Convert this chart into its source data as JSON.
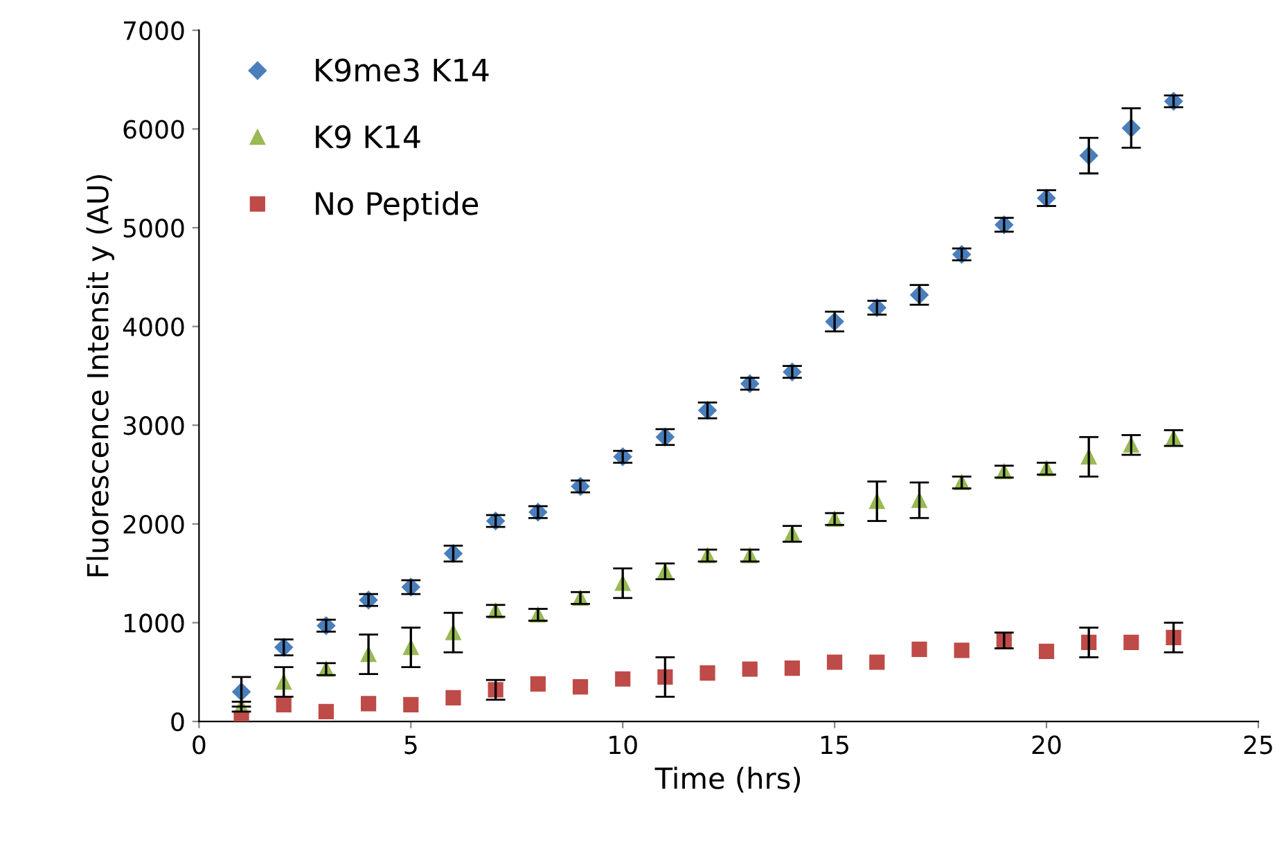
{
  "chart_data": {
    "type": "scatter",
    "xlabel": "Time (hrs)",
    "ylabel": "Fluorescence Intensit y (AU)",
    "x": [
      1,
      2,
      3,
      4,
      5,
      6,
      7,
      8,
      9,
      10,
      11,
      12,
      13,
      14,
      15,
      16,
      17,
      18,
      19,
      20,
      21,
      22,
      23
    ],
    "series": [
      {
        "name": "K9me3 K14",
        "color": "#4a7ebb",
        "marker": "diamond",
        "values": [
          300,
          750,
          970,
          1230,
          1360,
          1700,
          2030,
          2120,
          2380,
          2680,
          2880,
          3150,
          3420,
          3540,
          4050,
          4190,
          4320,
          4730,
          5030,
          5300,
          5730,
          6010,
          6280
        ],
        "errors": [
          150,
          80,
          60,
          60,
          70,
          80,
          60,
          60,
          60,
          60,
          80,
          80,
          60,
          60,
          100,
          70,
          100,
          60,
          70,
          80,
          180,
          200,
          60
        ]
      },
      {
        "name": "K9 K14",
        "color": "#98b954",
        "marker": "triangle",
        "values": [
          150,
          400,
          530,
          680,
          750,
          900,
          1120,
          1080,
          1250,
          1400,
          1520,
          1680,
          1680,
          1900,
          2050,
          2230,
          2240,
          2420,
          2530,
          2560,
          2680,
          2800,
          2870
        ],
        "errors": [
          50,
          150,
          60,
          200,
          200,
          200,
          60,
          60,
          60,
          150,
          80,
          60,
          60,
          80,
          60,
          200,
          180,
          60,
          60,
          60,
          200,
          100,
          80
        ]
      },
      {
        "name": "No Peptide",
        "color": "#be4b48",
        "marker": "square",
        "values": [
          30,
          170,
          100,
          180,
          170,
          240,
          320,
          380,
          350,
          430,
          450,
          490,
          530,
          540,
          600,
          600,
          730,
          720,
          820,
          710,
          800,
          800,
          850
        ],
        "errors": [
          null,
          null,
          null,
          null,
          null,
          null,
          100,
          null,
          null,
          null,
          200,
          null,
          null,
          null,
          null,
          null,
          null,
          null,
          80,
          null,
          150,
          null,
          150
        ]
      }
    ],
    "xlim": [
      0,
      25
    ],
    "xticks": [
      0,
      5,
      10,
      15,
      20,
      25
    ],
    "ylim": [
      0,
      7000
    ],
    "yticks": [
      0,
      1000,
      2000,
      3000,
      4000,
      5000,
      6000,
      7000
    ],
    "legend": "top left"
  }
}
